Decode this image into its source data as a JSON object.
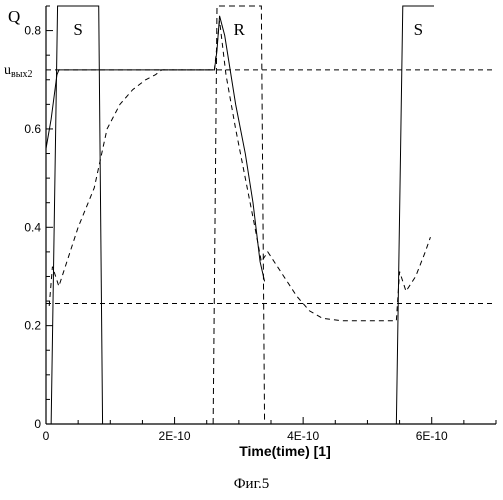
{
  "chart_data": {
    "type": "line",
    "ylabel": "Q",
    "xlabel": "Time(time) [1]",
    "xlim": [
      0,
      7e-10
    ],
    "ylim": [
      0,
      0.85
    ],
    "x_ticks": [
      {
        "value": 0,
        "label": "0"
      },
      {
        "value": 2e-10,
        "label": "2E-10"
      },
      {
        "value": 4e-10,
        "label": "4E-10"
      },
      {
        "value": 6e-10,
        "label": "6E-10"
      }
    ],
    "y_ticks": [
      {
        "value": 0,
        "label": "0"
      },
      {
        "value": 0.2,
        "label": "0.2"
      },
      {
        "value": 0.4,
        "label": "0.4"
      },
      {
        "value": 0.6,
        "label": "0.6"
      },
      {
        "value": 0.8,
        "label": "0.8"
      }
    ],
    "reference_lines": [
      {
        "y": 0.72,
        "label_main": "u",
        "label_sub": "вых2"
      },
      {
        "y": 0.245
      }
    ],
    "pulses": [
      {
        "label": "S",
        "style": "solid",
        "rise": [
          8e-12,
          1.8e-11
        ],
        "fall": [
          8.2e-11,
          8.8e-11
        ]
      },
      {
        "label": "R",
        "style": "dashed",
        "rise": [
          2.6e-10,
          2.66e-10
        ],
        "fall": [
          3.35e-10,
          3.4e-10
        ]
      },
      {
        "label": "S",
        "style": "solid",
        "rise": [
          5.45e-10,
          5.55e-10
        ],
        "fall": null
      }
    ],
    "series": [
      {
        "style": "solid",
        "x": [
          0,
          8e-12,
          1.4e-11,
          1.7e-11,
          2e-11,
          2.62e-10,
          2.66e-10,
          2.7e-10,
          2.78e-10,
          2.95e-10,
          3.1e-10,
          3.22e-10,
          3.33e-10,
          3.4e-10
        ],
        "y": [
          0.56,
          0.62,
          0.68,
          0.71,
          0.72,
          0.72,
          0.76,
          0.83,
          0.79,
          0.65,
          0.55,
          0.45,
          0.33,
          0.29
        ]
      },
      {
        "style": "dashed",
        "x": [
          5e-12,
          1e-11,
          2e-11,
          3e-11,
          5e-11,
          7.5e-11,
          9.5e-11,
          1.15e-10,
          1.35e-10,
          1.55e-10,
          1.7e-10,
          1.8e-10,
          2.62e-10,
          2.7e-10,
          2.8e-10,
          2.95e-10,
          3.1e-10,
          3.25e-10,
          3.35e-10,
          3.45e-10,
          3.55e-10,
          3.7e-10,
          3.9e-10,
          4.1e-10,
          4.3e-10,
          4.6e-10,
          5e-10,
          5.45e-10,
          5.5e-10,
          5.6e-10,
          5.75e-10,
          5.9e-10,
          5.98e-10
        ],
        "y": [
          0.24,
          0.32,
          0.28,
          0.32,
          0.4,
          0.48,
          0.6,
          0.65,
          0.68,
          0.7,
          0.71,
          0.72,
          0.72,
          0.82,
          0.71,
          0.6,
          0.5,
          0.4,
          0.33,
          0.35,
          0.33,
          0.3,
          0.26,
          0.23,
          0.215,
          0.21,
          0.21,
          0.21,
          0.31,
          0.27,
          0.3,
          0.35,
          0.38
        ]
      }
    ]
  },
  "caption": "Фиг.5"
}
